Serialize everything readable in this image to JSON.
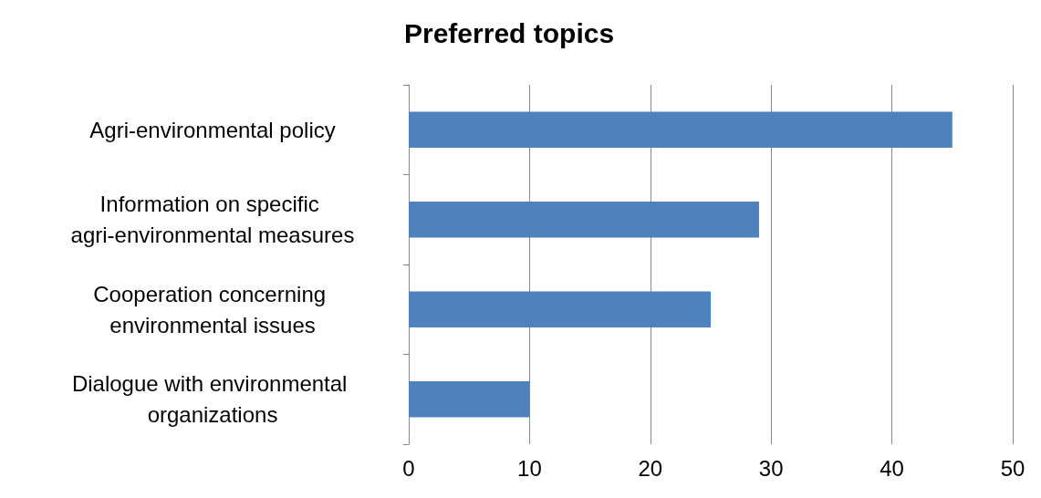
{
  "chart_data": {
    "type": "bar",
    "orientation": "horizontal",
    "title": "Preferred topics",
    "categories": [
      "Agri-environmental policy",
      "Information on specific agri-environmental measures",
      "Cooperation concerning environmental issues",
      "Dialogue with environmental organizations"
    ],
    "values": [
      45,
      29,
      25,
      10
    ],
    "color": "#4f81bd",
    "xlim": [
      0,
      50
    ],
    "xticks": [
      0,
      10,
      20,
      30,
      40,
      50
    ],
    "grid": "x"
  }
}
